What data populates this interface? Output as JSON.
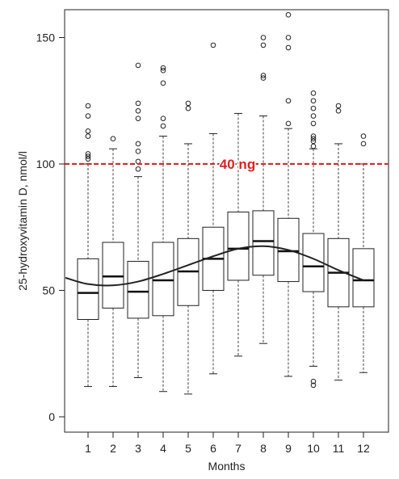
{
  "chart_data": {
    "type": "boxplot",
    "xlabel": "Months",
    "ylabel": "25-hydroxyvitamin D, nmol/l",
    "ylim": [
      0,
      160
    ],
    "yticks": [
      0,
      50,
      100,
      150
    ],
    "categories": [
      "1",
      "2",
      "3",
      "4",
      "5",
      "6",
      "7",
      "8",
      "9",
      "10",
      "11",
      "12"
    ],
    "boxes": [
      {
        "month": "1",
        "whisker_low": 12,
        "q1": 38.5,
        "median": 49,
        "q3": 62.5,
        "whisker_high": 100,
        "outliers": [
          102,
          103,
          104,
          111,
          113,
          119,
          123
        ]
      },
      {
        "month": "2",
        "whisker_low": 12,
        "q1": 43,
        "median": 55.5,
        "q3": 69,
        "whisker_high": 106,
        "outliers": [
          110
        ]
      },
      {
        "month": "3",
        "whisker_low": 15.5,
        "q1": 39,
        "median": 49.5,
        "q3": 61.5,
        "whisker_high": 95,
        "outliers": [
          98,
          101,
          105,
          108,
          118,
          121,
          124,
          139
        ]
      },
      {
        "month": "4",
        "whisker_low": 10,
        "q1": 40,
        "median": 54,
        "q3": 69,
        "whisker_high": 111,
        "outliers": [
          115,
          118,
          132,
          137,
          138
        ]
      },
      {
        "month": "5",
        "whisker_low": 9,
        "q1": 44,
        "median": 57.5,
        "q3": 70.5,
        "whisker_high": 108,
        "outliers": [
          122,
          124
        ]
      },
      {
        "month": "6",
        "whisker_low": 17,
        "q1": 50,
        "median": 62.5,
        "q3": 75,
        "whisker_high": 112,
        "outliers": [
          147
        ]
      },
      {
        "month": "7",
        "whisker_low": 24,
        "q1": 54,
        "median": 66.5,
        "q3": 81,
        "whisker_high": 120,
        "outliers": []
      },
      {
        "month": "8",
        "whisker_low": 29,
        "q1": 56,
        "median": 69.5,
        "q3": 81.5,
        "whisker_high": 119,
        "outliers": [
          134,
          135,
          147,
          150
        ]
      },
      {
        "month": "9",
        "whisker_low": 16,
        "q1": 53.5,
        "median": 65.5,
        "q3": 78.5,
        "whisker_high": 114,
        "outliers": [
          116,
          125,
          146,
          150,
          159
        ]
      },
      {
        "month": "10",
        "whisker_low": 20,
        "q1": 49.5,
        "median": 59.5,
        "q3": 72.5,
        "whisker_high": 106,
        "outliers": [
          12.5,
          14,
          107,
          109,
          110,
          111,
          116,
          119,
          122,
          125,
          128
        ]
      },
      {
        "month": "11",
        "whisker_low": 14.5,
        "q1": 43.5,
        "median": 57,
        "q3": 70.5,
        "whisker_high": 108,
        "outliers": [
          121,
          123
        ]
      },
      {
        "month": "12",
        "whisker_low": 17.5,
        "q1": 43.5,
        "median": 54,
        "q3": 66.5,
        "whisker_high": 100,
        "outliers": [
          108,
          111
        ]
      }
    ],
    "trend_curve": {
      "x": [
        0.1,
        1,
        2,
        3,
        4,
        5,
        6,
        7,
        8,
        9,
        10,
        11,
        12
      ],
      "y": [
        55,
        52.5,
        52,
        53.5,
        56.5,
        60,
        63.5,
        66.5,
        67.5,
        66,
        62.5,
        58,
        54
      ]
    },
    "reference_line": {
      "y": 100,
      "label": "40 ng",
      "color": "#e02020"
    },
    "grid": false
  }
}
